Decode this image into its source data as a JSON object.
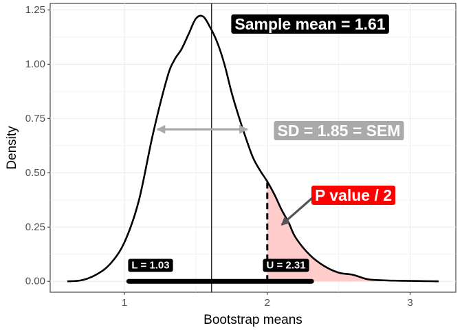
{
  "chart_data": {
    "type": "area",
    "xlabel": "Bootstrap means",
    "ylabel": "Density",
    "xlim": [
      0.48,
      3.32
    ],
    "ylim": [
      -0.05,
      1.28
    ],
    "x_ticks": [
      1,
      2,
      3
    ],
    "x_tick_labels": [
      "1",
      "2",
      "3"
    ],
    "y_ticks": [
      0,
      0.25,
      0.5,
      0.75,
      1.0,
      1.25
    ],
    "y_tick_labels": [
      "0.00",
      "0.25",
      "0.50",
      "0.75",
      "1.00",
      "1.25"
    ],
    "grid": true,
    "density": {
      "x": [
        0.6,
        0.7,
        0.8,
        0.9,
        1.0,
        1.1,
        1.2,
        1.3,
        1.35,
        1.4,
        1.45,
        1.5,
        1.55,
        1.6,
        1.65,
        1.7,
        1.75,
        1.8,
        1.85,
        1.9,
        1.95,
        2.0,
        2.05,
        2.1,
        2.15,
        2.2,
        2.3,
        2.4,
        2.5,
        2.6,
        2.7,
        2.8,
        2.9,
        3.0,
        3.1,
        3.2
      ],
      "y": [
        0.0,
        0.005,
        0.03,
        0.08,
        0.18,
        0.37,
        0.68,
        0.94,
        1.02,
        1.07,
        1.14,
        1.21,
        1.22,
        1.17,
        1.1,
        1.0,
        0.87,
        0.76,
        0.66,
        0.57,
        0.51,
        0.46,
        0.4,
        0.33,
        0.27,
        0.2,
        0.12,
        0.07,
        0.04,
        0.03,
        0.01,
        0.005,
        0.003,
        0.002,
        0.001,
        0.0
      ]
    },
    "shaded_region": {
      "from": 2.0,
      "to": 3.2,
      "color": "#ffcccc"
    },
    "sample_mean": 1.61,
    "sd_arrow": {
      "from": 1.23,
      "to": 1.86,
      "y": 0.7
    },
    "p_arrow": {
      "from_x": 2.36,
      "from_y": 0.41,
      "to_x": 2.1,
      "to_y": 0.26
    },
    "ci": {
      "lower": 1.03,
      "upper": 2.31
    },
    "colors": {
      "curve": "#000000",
      "shade": "#ffcccc",
      "sd_arrow": "#aaaaaa",
      "sd_label_bg": "#aaaaaa",
      "p_label_bg": "#ff0000",
      "p_arrow": "#555555",
      "label_bg": "#000000",
      "grid": "#ebebeb"
    },
    "annotations": {
      "sample_mean": "Sample mean =  1.61",
      "sd": "SD = 1.85 = SEM",
      "p_value": "P value / 2",
      "lower": "L =  1.03",
      "upper": "U =  2.31"
    }
  }
}
